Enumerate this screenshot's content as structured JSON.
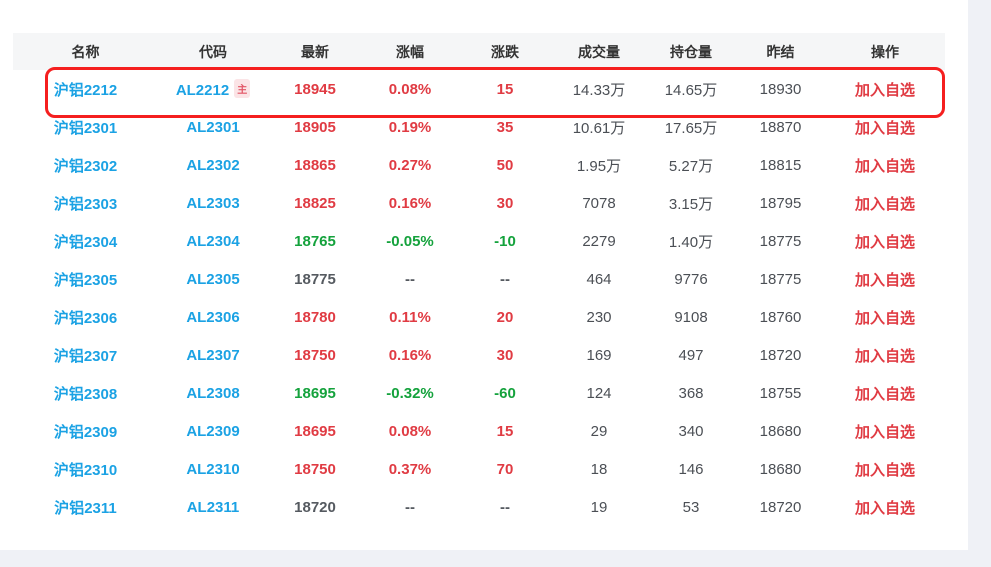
{
  "colors": {
    "up_red": "#e03b43",
    "down_green": "#14a23c",
    "link_blue": "#1ba2e4",
    "neutral_text": "#4b4f55",
    "header_band": "#f5f6f7",
    "page_background": "#eff1f6",
    "highlight_border_red": "#f51f1f",
    "badge_background": "#fbe4e6",
    "badge_text": "#e25566"
  },
  "table": {
    "columns": [
      {
        "key": "name",
        "label": "名称"
      },
      {
        "key": "code",
        "label": "代码"
      },
      {
        "key": "last",
        "label": "最新"
      },
      {
        "key": "change_pct",
        "label": "涨幅"
      },
      {
        "key": "change",
        "label": "涨跌"
      },
      {
        "key": "volume",
        "label": "成交量"
      },
      {
        "key": "open_interest",
        "label": "持仓量"
      },
      {
        "key": "prev_settle",
        "label": "昨结"
      },
      {
        "key": "action",
        "label": "操作"
      }
    ],
    "action_label": "加入自选",
    "main_badge_label": "主",
    "rows": [
      {
        "name": "沪铝2212",
        "code": "AL2212",
        "badge": "主",
        "last": "18945",
        "change_pct": "0.08%",
        "change": "15",
        "volume": "14.33万",
        "open_interest": "14.65万",
        "prev_settle": "18930",
        "trend": "up",
        "highlighted": true
      },
      {
        "name": "沪铝2301",
        "code": "AL2301",
        "badge": "",
        "last": "18905",
        "change_pct": "0.19%",
        "change": "35",
        "volume": "10.61万",
        "open_interest": "17.65万",
        "prev_settle": "18870",
        "trend": "up",
        "highlighted": false
      },
      {
        "name": "沪铝2302",
        "code": "AL2302",
        "badge": "",
        "last": "18865",
        "change_pct": "0.27%",
        "change": "50",
        "volume": "1.95万",
        "open_interest": "5.27万",
        "prev_settle": "18815",
        "trend": "up",
        "highlighted": false
      },
      {
        "name": "沪铝2303",
        "code": "AL2303",
        "badge": "",
        "last": "18825",
        "change_pct": "0.16%",
        "change": "30",
        "volume": "7078",
        "open_interest": "3.15万",
        "prev_settle": "18795",
        "trend": "up",
        "highlighted": false
      },
      {
        "name": "沪铝2304",
        "code": "AL2304",
        "badge": "",
        "last": "18765",
        "change_pct": "-0.05%",
        "change": "-10",
        "volume": "2279",
        "open_interest": "1.40万",
        "prev_settle": "18775",
        "trend": "down",
        "highlighted": false
      },
      {
        "name": "沪铝2305",
        "code": "AL2305",
        "badge": "",
        "last": "18775",
        "change_pct": "--",
        "change": "--",
        "volume": "464",
        "open_interest": "9776",
        "prev_settle": "18775",
        "trend": "flat",
        "highlighted": false
      },
      {
        "name": "沪铝2306",
        "code": "AL2306",
        "badge": "",
        "last": "18780",
        "change_pct": "0.11%",
        "change": "20",
        "volume": "230",
        "open_interest": "9108",
        "prev_settle": "18760",
        "trend": "up",
        "highlighted": false
      },
      {
        "name": "沪铝2307",
        "code": "AL2307",
        "badge": "",
        "last": "18750",
        "change_pct": "0.16%",
        "change": "30",
        "volume": "169",
        "open_interest": "497",
        "prev_settle": "18720",
        "trend": "up",
        "highlighted": false
      },
      {
        "name": "沪铝2308",
        "code": "AL2308",
        "badge": "",
        "last": "18695",
        "change_pct": "-0.32%",
        "change": "-60",
        "volume": "124",
        "open_interest": "368",
        "prev_settle": "18755",
        "trend": "down",
        "highlighted": false
      },
      {
        "name": "沪铝2309",
        "code": "AL2309",
        "badge": "",
        "last": "18695",
        "change_pct": "0.08%",
        "change": "15",
        "volume": "29",
        "open_interest": "340",
        "prev_settle": "18680",
        "trend": "up",
        "highlighted": false
      },
      {
        "name": "沪铝2310",
        "code": "AL2310",
        "badge": "",
        "last": "18750",
        "change_pct": "0.37%",
        "change": "70",
        "volume": "18",
        "open_interest": "146",
        "prev_settle": "18680",
        "trend": "up",
        "highlighted": false
      },
      {
        "name": "沪铝2311",
        "code": "AL2311",
        "badge": "",
        "last": "18720",
        "change_pct": "--",
        "change": "--",
        "volume": "19",
        "open_interest": "53",
        "prev_settle": "18720",
        "trend": "flat",
        "highlighted": false
      }
    ]
  }
}
